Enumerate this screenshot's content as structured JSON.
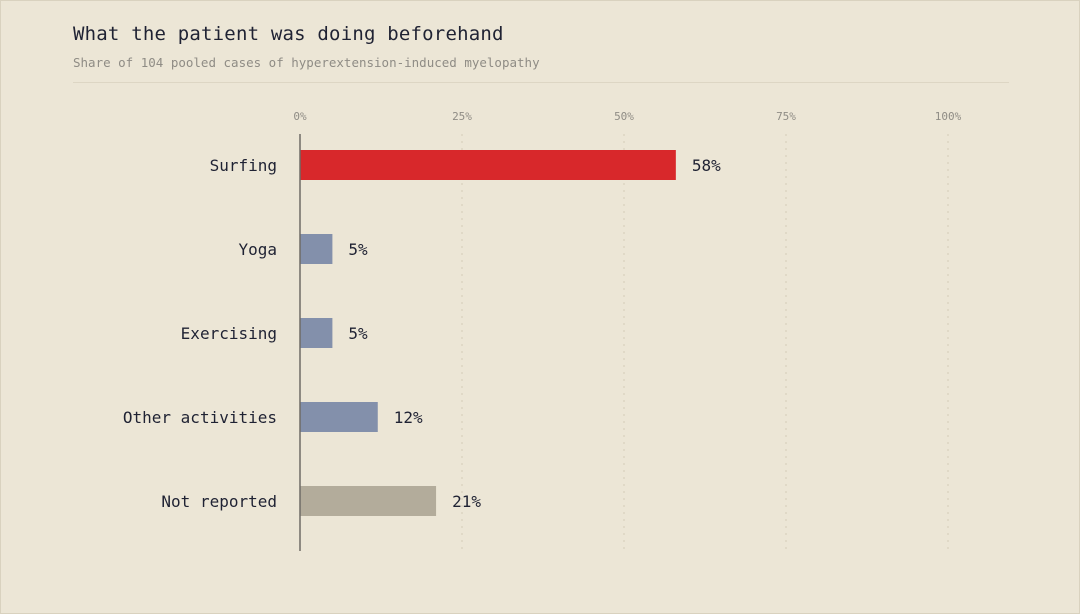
{
  "chart_data": {
    "type": "bar",
    "orientation": "horizontal",
    "title": "What the patient was doing beforehand",
    "subtitle": "Share of 104 pooled cases of hyperextension-induced myelopathy",
    "categories": [
      "Surfing",
      "Yoga",
      "Exercising",
      "Other activities",
      "Not reported"
    ],
    "values": [
      58,
      5,
      5,
      12,
      21
    ],
    "value_labels": [
      "58%",
      "5%",
      "5%",
      "12%",
      "21%"
    ],
    "bar_colors": [
      "#d8282b",
      "#8390ab",
      "#8390ab",
      "#8390ab",
      "#b3ac9b"
    ],
    "xlim": [
      0,
      100
    ],
    "x_ticks": [
      0,
      25,
      50,
      75,
      100
    ],
    "x_tick_labels": [
      "0%",
      "25%",
      "50%",
      "75%",
      "100%"
    ],
    "grid": "vertical dotted",
    "legend": "none"
  }
}
